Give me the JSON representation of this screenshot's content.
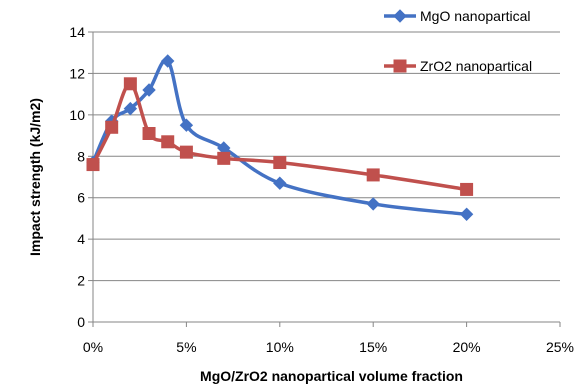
{
  "chart_data": {
    "type": "line",
    "title": "",
    "xlabel": "MgO/ZrO2 nanopartical volume fraction",
    "ylabel": "Impact strength (kJ/m2)",
    "xlim": [
      0,
      25
    ],
    "ylim": [
      0,
      14
    ],
    "x_ticks": [
      0,
      5,
      10,
      15,
      20,
      25
    ],
    "x_tick_labels": [
      "0%",
      "5%",
      "10%",
      "15%",
      "20%",
      "25%"
    ],
    "y_ticks": [
      0,
      2,
      4,
      6,
      8,
      10,
      12,
      14
    ],
    "y_tick_labels": [
      "0",
      "2",
      "4",
      "6",
      "8",
      "10",
      "12",
      "14"
    ],
    "grid": "horizontal",
    "legend_position": "top-right",
    "smooth": true,
    "series": [
      {
        "name": "MgO nanopartical",
        "color": "#4472C4",
        "marker": "diamond",
        "x": [
          0,
          1,
          2,
          3,
          4,
          5,
          7,
          10,
          15,
          20
        ],
        "y": [
          7.7,
          9.7,
          10.3,
          11.2,
          12.6,
          9.5,
          8.4,
          6.7,
          5.7,
          5.2
        ]
      },
      {
        "name": "ZrO2 nanopartical",
        "color": "#C0504D",
        "marker": "square",
        "x": [
          0,
          1,
          2,
          3,
          4,
          5,
          7,
          10,
          15,
          20
        ],
        "y": [
          7.6,
          9.4,
          11.5,
          9.1,
          8.7,
          8.2,
          7.9,
          7.7,
          7.1,
          6.4
        ]
      }
    ]
  }
}
